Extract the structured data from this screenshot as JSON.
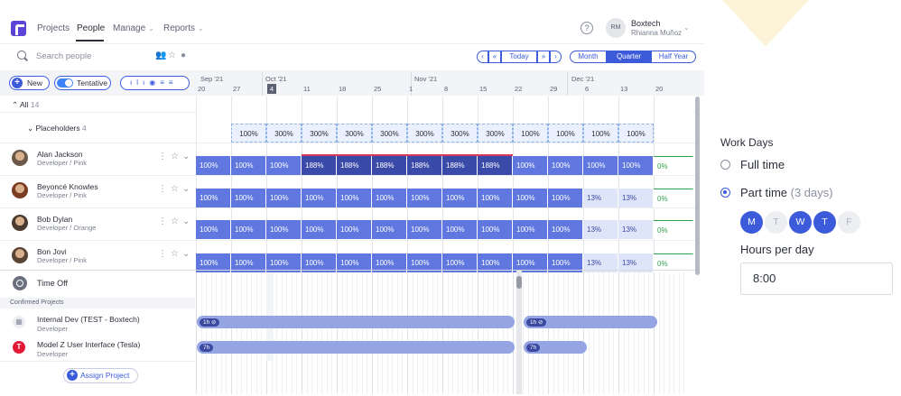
{
  "nav": {
    "projects": "Projects",
    "people": "People",
    "manage": "Manage",
    "reports": "Reports",
    "help": "?"
  },
  "user": {
    "initials": "RM",
    "org": "Boxtech",
    "name": "Rhianna Muñoz"
  },
  "search": {
    "placeholder": "Search people"
  },
  "date_nav": {
    "prev": "‹",
    "prev_fast": "«",
    "today": "Today",
    "next_fast": "»",
    "next": "›"
  },
  "views": [
    "Month",
    "Quarter",
    "Half Year"
  ],
  "active_view": "Quarter",
  "toolbar": {
    "new": "New",
    "tentative": "Tentative"
  },
  "timeline": {
    "months": [
      "Sep '21",
      "Oct '21",
      "Nov '21",
      "Dec '21"
    ],
    "days": [
      "20",
      "27",
      "4",
      "11",
      "18",
      "25",
      "1",
      "8",
      "15",
      "22",
      "29",
      "6",
      "13",
      "20"
    ]
  },
  "groups": {
    "all": "All",
    "all_count": "14",
    "placeholders": "Placeholders",
    "placeholders_count": "4"
  },
  "placeholder_row": [
    "",
    "100%",
    "300%",
    "300%",
    "300%",
    "300%",
    "300%",
    "300%",
    "300%",
    "100%",
    "100%",
    "100%",
    "100%",
    ""
  ],
  "people": [
    {
      "name": "Alan Jackson",
      "role": "Developer / Pink",
      "cells": [
        "100%",
        "100%",
        "100%",
        "188%",
        "188%",
        "188%",
        "188%",
        "188%",
        "188%",
        "100%",
        "100%",
        "100%",
        "100%",
        "0%"
      ]
    },
    {
      "name": "Beyoncé Knowles",
      "role": "Developer / Pink",
      "cells": [
        "100%",
        "100%",
        "100%",
        "100%",
        "100%",
        "100%",
        "100%",
        "100%",
        "100%",
        "100%",
        "100%",
        "13%",
        "13%",
        "0%"
      ]
    },
    {
      "name": "Bob Dylan",
      "role": "Developer / Orange",
      "cells": [
        "100%",
        "100%",
        "100%",
        "100%",
        "100%",
        "100%",
        "100%",
        "100%",
        "100%",
        "100%",
        "100%",
        "13%",
        "13%",
        "0%"
      ]
    },
    {
      "name": "Bon Jovi",
      "role": "Developer / Pink",
      "cells": [
        "100%",
        "100%",
        "100%",
        "100%",
        "100%",
        "100%",
        "100%",
        "100%",
        "100%",
        "100%",
        "100%",
        "13%",
        "13%",
        "0%"
      ]
    }
  ],
  "time_off": "Time Off",
  "confirmed": "Confirmed Projects",
  "projects": [
    {
      "name": "Internal Dev (TEST - Boxtech)",
      "role": "Developer",
      "tags": [
        "1h",
        "1h"
      ]
    },
    {
      "name": "Model Z User Interface (Tesla)",
      "role": "Developer",
      "tags": [
        "7h",
        "7h"
      ]
    }
  ],
  "assign": "Assign Project",
  "panel": {
    "title": "Work Days",
    "full_time": "Full time",
    "part_time": "Part time",
    "part_time_sub": "(3 days)",
    "days": [
      {
        "l": "M",
        "on": true
      },
      {
        "l": "T",
        "on": false
      },
      {
        "l": "W",
        "on": true
      },
      {
        "l": "T",
        "on": true
      },
      {
        "l": "F",
        "on": false
      }
    ],
    "hours_label": "Hours per day",
    "hours_value": "8:00"
  },
  "colors": {
    "accent": "#3b5bdb",
    "alloc": "#5f77de",
    "over": "#3a4aa8",
    "light": "#dfe5f8",
    "zero": "#2e9e4b"
  }
}
